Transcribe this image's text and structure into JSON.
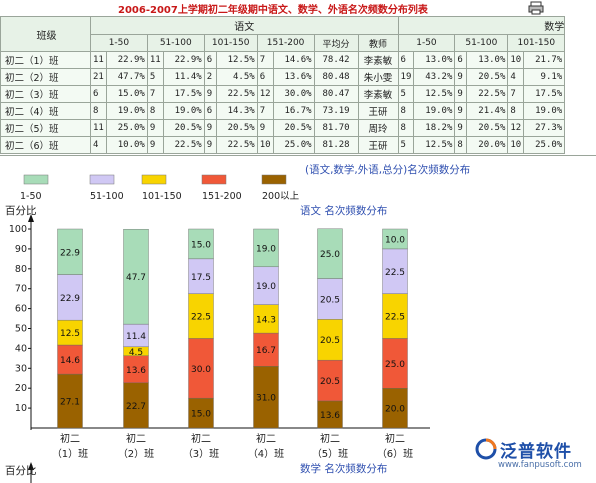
{
  "title": "2006-2007上学期初二年级期中语文、数学、外语名次频数分布列表",
  "table": {
    "class_header": "班级",
    "subjects": [
      "语文",
      "数学"
    ],
    "yuwen_cols": [
      "1-50",
      "51-100",
      "101-150",
      "151-200",
      "平均分",
      "教师"
    ],
    "shuxue_cols": [
      "1-50",
      "51-100",
      "101-150"
    ],
    "rows": [
      {
        "cls": "初二（1）班",
        "y": [
          "11",
          "22.9%",
          "11",
          "22.9%",
          "6",
          "12.5%",
          "7",
          "14.6%"
        ],
        "avg": "78.42",
        "teacher": "李素敏",
        "s": [
          "6",
          "13.0%",
          "6",
          "13.0%",
          "10",
          "21.7%"
        ]
      },
      {
        "cls": "初二（2）班",
        "y": [
          "21",
          "47.7%",
          "5",
          "11.4%",
          "2",
          "4.5%",
          "6",
          "13.6%"
        ],
        "avg": "80.48",
        "teacher": "朱小雯",
        "s": [
          "19",
          "43.2%",
          "9",
          "20.5%",
          "4",
          "9.1%"
        ]
      },
      {
        "cls": "初二（3）班",
        "y": [
          "6",
          "15.0%",
          "7",
          "17.5%",
          "9",
          "22.5%",
          "12",
          "30.0%"
        ],
        "avg": "80.47",
        "teacher": "李素敏",
        "s": [
          "5",
          "12.5%",
          "9",
          "22.5%",
          "7",
          "17.5%"
        ]
      },
      {
        "cls": "初二（4）班",
        "y": [
          "8",
          "19.0%",
          "8",
          "19.0%",
          "6",
          "14.3%",
          "7",
          "16.7%"
        ],
        "avg": "73.19",
        "teacher": "王研",
        "s": [
          "8",
          "19.0%",
          "9",
          "21.4%",
          "8",
          "19.0%"
        ]
      },
      {
        "cls": "初二（5）班",
        "y": [
          "11",
          "25.0%",
          "9",
          "20.5%",
          "9",
          "20.5%",
          "9",
          "20.5%"
        ],
        "avg": "81.70",
        "teacher": "周玲",
        "s": [
          "8",
          "18.2%",
          "9",
          "20.5%",
          "12",
          "27.3%"
        ]
      },
      {
        "cls": "初二（6）班",
        "y": [
          "4",
          "10.0%",
          "9",
          "22.5%",
          "9",
          "22.5%",
          "10",
          "25.0%"
        ],
        "avg": "81.28",
        "teacher": "王研",
        "s": [
          "5",
          "12.5%",
          "8",
          "20.0%",
          "10",
          "25.0%"
        ]
      }
    ]
  },
  "chart_header": "(语文,数学,外语,总分)名次频数分布",
  "legend": [
    {
      "label": "1-50",
      "color": "#a8dcb8"
    },
    {
      "label": "51-100",
      "color": "#d0c8f4"
    },
    {
      "label": "101-150",
      "color": "#f8d400"
    },
    {
      "label": "151-200",
      "color": "#f05838"
    },
    {
      "label": "200以上",
      "color": "#9a6200"
    }
  ],
  "chart_data": {
    "type": "bar",
    "title": "语文 名次频数分布",
    "ylabel": "百分比",
    "ylim": [
      0,
      100
    ],
    "yticks": [
      10,
      20,
      30,
      40,
      50,
      60,
      70,
      80,
      90,
      100
    ],
    "categories_line1": [
      "初二",
      "初二",
      "初二",
      "初二",
      "初二",
      "初二"
    ],
    "categories_line2": [
      "（1）班",
      "（2）班",
      "（3）班",
      "（4）班",
      "（5）班",
      "（6）班"
    ],
    "series": [
      {
        "name": "200以上",
        "values": [
          27.1,
          22.7,
          15.0,
          31.0,
          13.6,
          20.0
        ]
      },
      {
        "name": "151-200",
        "values": [
          14.6,
          13.6,
          30.0,
          16.7,
          20.5,
          25.0
        ]
      },
      {
        "name": "101-150",
        "values": [
          12.5,
          4.5,
          22.5,
          14.3,
          20.5,
          22.5
        ]
      },
      {
        "name": "51-100",
        "values": [
          22.9,
          11.4,
          17.5,
          19.0,
          20.5,
          22.5
        ]
      },
      {
        "name": "1-50",
        "values": [
          22.9,
          47.7,
          15.0,
          19.0,
          25.0,
          10.0
        ]
      }
    ]
  },
  "second_chart": {
    "ylabel": "百分比",
    "title": "数学 名次频数分布"
  },
  "logo": {
    "name": "泛普软件",
    "url": "www.fanpusoft.com"
  }
}
